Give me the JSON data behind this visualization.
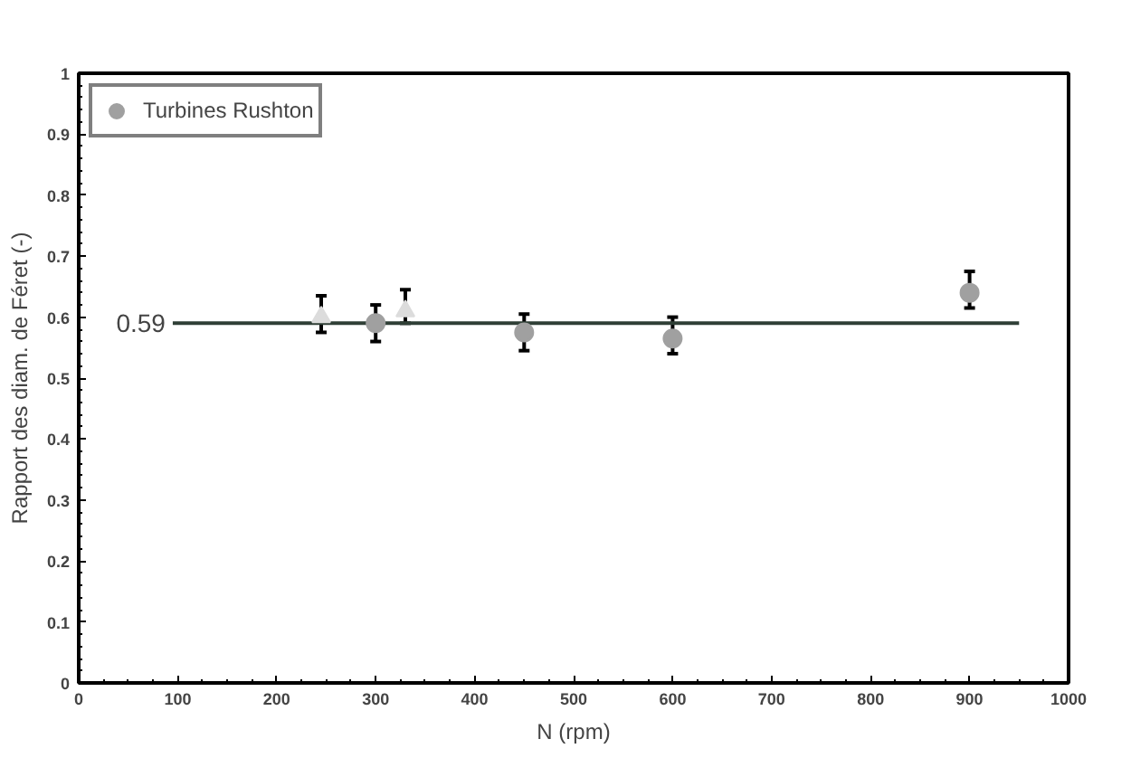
{
  "chart_data": {
    "type": "scatter",
    "xlabel": "N (rpm)",
    "ylabel": "Rapport des diam. de Féret (-)",
    "xlim": [
      0,
      1000
    ],
    "ylim": [
      0,
      1
    ],
    "xticks": [
      0,
      100,
      200,
      300,
      400,
      500,
      600,
      700,
      800,
      900,
      1000
    ],
    "yticks": [
      0,
      0.1,
      0.2,
      0.3,
      0.4,
      0.5,
      0.6,
      0.7,
      0.8,
      0.9,
      1
    ],
    "grid": false,
    "legend": "top left",
    "series": [
      {
        "type": "line",
        "color": "#2f3f36",
        "x": [
          95,
          950
        ],
        "values": [
          0.59,
          0.59
        ],
        "marker": "none"
      },
      {
        "name": "Turbines Rushton",
        "color": "#a0a0a0",
        "marker": "circle",
        "x": [
          300,
          450,
          600,
          900
        ],
        "values": [
          0.59,
          0.575,
          0.565,
          0.64
        ],
        "errors": [
          [
            0.56,
            0.62
          ],
          [
            0.545,
            0.605
          ],
          [
            0.54,
            0.6
          ],
          [
            0.615,
            0.675
          ]
        ]
      },
      {
        "color": "#dcdcdc",
        "marker": "triangle",
        "x": [
          245,
          330
        ],
        "values": [
          0.6,
          0.61
        ],
        "errors": [
          [
            0.575,
            0.635
          ],
          [
            0.59,
            0.645
          ]
        ]
      }
    ],
    "annotations": [
      {
        "text": "0.59",
        "x": 95,
        "y": 0.59
      }
    ]
  }
}
